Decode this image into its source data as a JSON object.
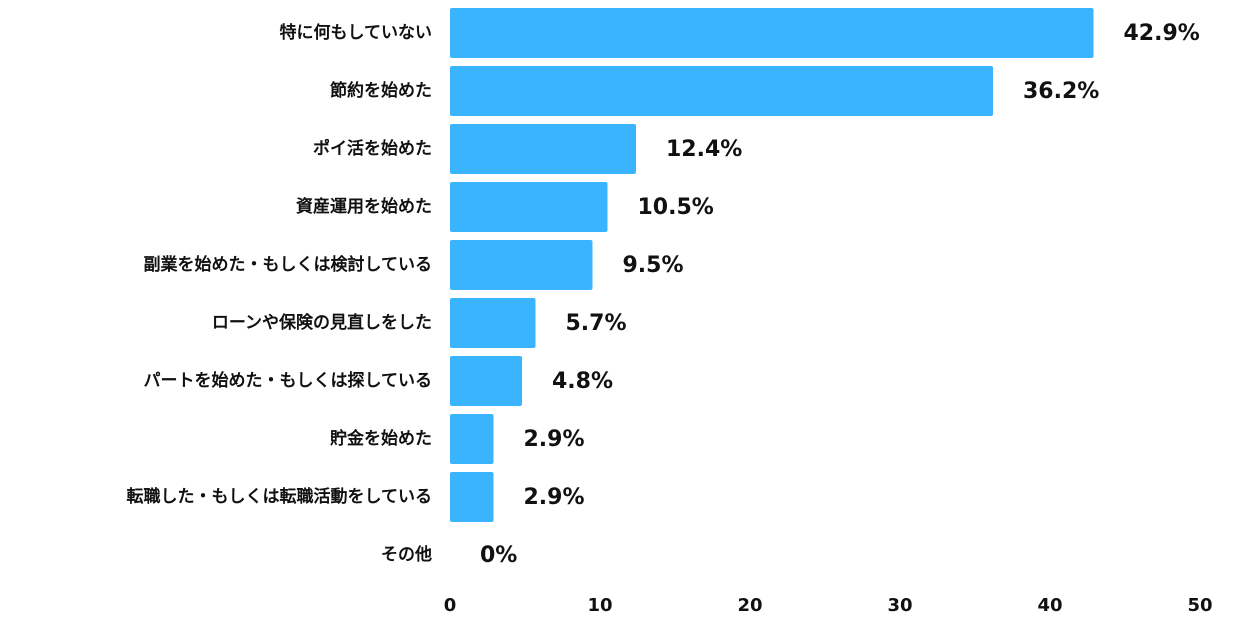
{
  "chart_data": {
    "type": "barh",
    "categories": [
      "特に何もしていない",
      "節約を始めた",
      "ポイ活を始めた",
      "資産運用を始めた",
      "副業を始めた・もしくは検討している",
      "ローンや保険の見直しをした",
      "パートを始めた・もしくは探している",
      "貯金を始めた",
      "転職した・もしくは転職活動をしている",
      "その他"
    ],
    "values": [
      42.9,
      36.2,
      12.4,
      10.5,
      9.5,
      5.7,
      4.8,
      2.9,
      2.9,
      0
    ],
    "value_labels": [
      "42.9%",
      "36.2%",
      "12.4%",
      "10.5%",
      "9.5%",
      "5.7%",
      "4.8%",
      "2.9%",
      "2.9%",
      "0%"
    ],
    "color": "#3bb4ff",
    "xlim": [
      0,
      50
    ],
    "xticks": [
      0,
      10,
      20,
      30,
      40,
      50
    ],
    "grid": false
  }
}
